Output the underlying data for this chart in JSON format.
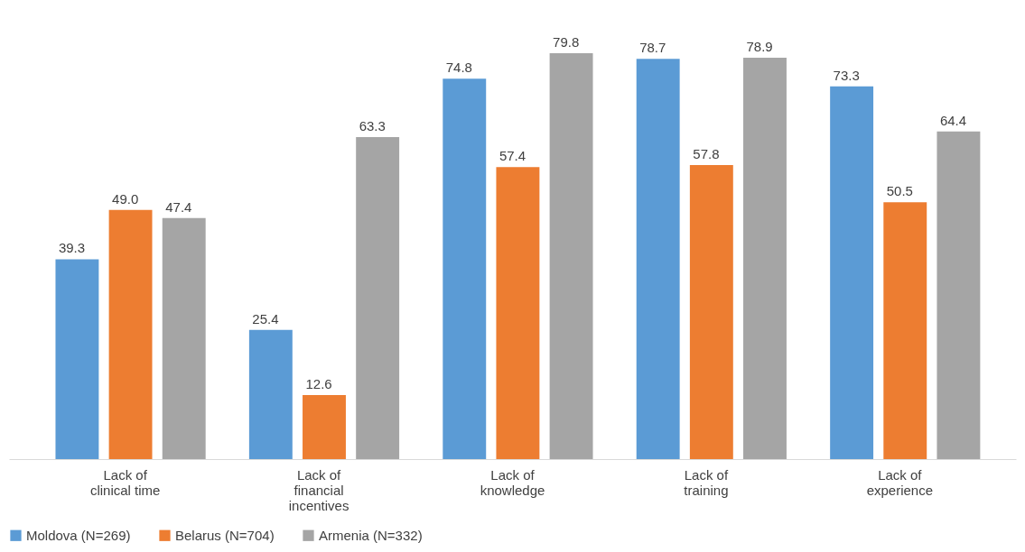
{
  "chart_data": {
    "type": "bar",
    "categories": [
      "Lack of clinical time",
      "Lack of financial incentives",
      "Lack of knowledge",
      "Lack of training",
      "Lack of experience"
    ],
    "series": [
      {
        "name": "Moldova (N=269)",
        "color": "#5b9bd5",
        "values": [
          39.3,
          25.4,
          74.8,
          78.7,
          73.3
        ],
        "value_labels": [
          "39.3",
          "25.4",
          "74.8",
          "78.7",
          "73.3"
        ]
      },
      {
        "name": "Belarus (N=704)",
        "color": "#ed7d31",
        "values": [
          49.0,
          12.6,
          57.4,
          57.8,
          50.5
        ],
        "value_labels": [
          "49.0",
          "12.6",
          "57.4",
          "57.8",
          "50.5"
        ]
      },
      {
        "name": "Armenia (N=332)",
        "color": "#a5a5a5",
        "values": [
          47.4,
          63.3,
          79.8,
          78.9,
          64.4
        ],
        "value_labels": [
          "47.4",
          "63.3",
          "79.8",
          "78.9",
          "64.4"
        ]
      }
    ],
    "legend": "bottom"
  }
}
